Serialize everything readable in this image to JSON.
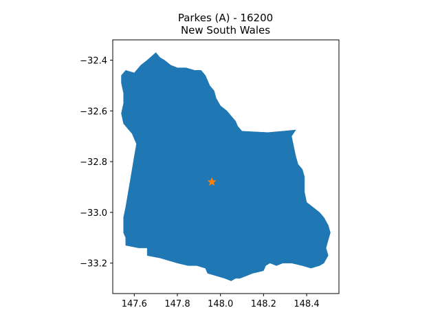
{
  "chart_data": {
    "type": "map",
    "title": "Parkes (A) - 16200",
    "subtitle": "New South Wales",
    "xlabel": "",
    "ylabel": "",
    "xlim": [
      147.5,
      148.55
    ],
    "ylim": [
      -33.32,
      -32.32
    ],
    "x_ticks": [
      147.6,
      147.8,
      148.0,
      148.2,
      148.4
    ],
    "x_tick_labels": [
      "147.6",
      "147.8",
      "148.0",
      "148.2",
      "148.4"
    ],
    "y_ticks": [
      -32.4,
      -32.6,
      -32.8,
      -33.0,
      -33.2
    ],
    "y_tick_labels": [
      "−32.4",
      "−32.6",
      "−32.8",
      "−33.0",
      "−33.2"
    ],
    "grid": false,
    "region": {
      "color": "#1f77b4",
      "boundary": [
        [
          147.7,
          -32.37
        ],
        [
          147.72,
          -32.39
        ],
        [
          147.74,
          -32.4
        ],
        [
          147.77,
          -32.42
        ],
        [
          147.8,
          -32.43
        ],
        [
          147.84,
          -32.43
        ],
        [
          147.88,
          -32.44
        ],
        [
          147.91,
          -32.44
        ],
        [
          147.93,
          -32.46
        ],
        [
          147.94,
          -32.48
        ],
        [
          147.95,
          -32.5
        ],
        [
          147.97,
          -32.52
        ],
        [
          147.98,
          -32.55
        ],
        [
          148.0,
          -32.58
        ],
        [
          148.03,
          -32.6
        ],
        [
          148.05,
          -32.62
        ],
        [
          148.07,
          -32.64
        ],
        [
          148.08,
          -32.66
        ],
        [
          148.1,
          -32.68
        ],
        [
          148.22,
          -32.685
        ],
        [
          148.29,
          -32.68
        ],
        [
          148.35,
          -32.675
        ],
        [
          148.33,
          -32.7
        ],
        [
          148.34,
          -32.74
        ],
        [
          148.35,
          -32.78
        ],
        [
          148.36,
          -32.81
        ],
        [
          148.38,
          -32.83
        ],
        [
          148.39,
          -32.86
        ],
        [
          148.39,
          -32.92
        ],
        [
          148.4,
          -32.96
        ],
        [
          148.43,
          -32.98
        ],
        [
          148.46,
          -33.0
        ],
        [
          148.48,
          -33.02
        ],
        [
          148.5,
          -33.05
        ],
        [
          148.51,
          -33.08
        ],
        [
          148.5,
          -33.11
        ],
        [
          148.49,
          -33.14
        ],
        [
          148.5,
          -33.17
        ],
        [
          148.48,
          -33.2
        ],
        [
          148.46,
          -33.21
        ],
        [
          148.42,
          -33.22
        ],
        [
          148.38,
          -33.21
        ],
        [
          148.33,
          -33.2
        ],
        [
          148.29,
          -33.2
        ],
        [
          148.26,
          -33.21
        ],
        [
          148.23,
          -33.2
        ],
        [
          148.21,
          -33.21
        ],
        [
          148.2,
          -33.23
        ],
        [
          148.15,
          -33.24
        ],
        [
          148.12,
          -33.25
        ],
        [
          148.09,
          -33.26
        ],
        [
          148.07,
          -33.26
        ],
        [
          148.05,
          -33.27
        ],
        [
          148.02,
          -33.26
        ],
        [
          147.98,
          -33.25
        ],
        [
          147.94,
          -33.24
        ],
        [
          147.93,
          -33.22
        ],
        [
          147.89,
          -33.21
        ],
        [
          147.85,
          -33.21
        ],
        [
          147.8,
          -33.2
        ],
        [
          147.76,
          -33.19
        ],
        [
          147.72,
          -33.18
        ],
        [
          147.66,
          -33.17
        ],
        [
          147.66,
          -33.14
        ],
        [
          147.62,
          -33.14
        ],
        [
          147.56,
          -33.13
        ],
        [
          147.56,
          -33.1
        ],
        [
          147.55,
          -33.08
        ],
        [
          147.55,
          -33.02
        ],
        [
          147.56,
          -32.98
        ],
        [
          147.57,
          -32.93
        ],
        [
          147.58,
          -32.88
        ],
        [
          147.59,
          -32.83
        ],
        [
          147.6,
          -32.78
        ],
        [
          147.61,
          -32.73
        ],
        [
          147.6,
          -32.71
        ],
        [
          147.59,
          -32.69
        ],
        [
          147.57,
          -32.67
        ],
        [
          147.55,
          -32.65
        ],
        [
          147.54,
          -32.61
        ],
        [
          147.55,
          -32.57
        ],
        [
          147.55,
          -32.53
        ],
        [
          147.54,
          -32.49
        ],
        [
          147.54,
          -32.46
        ],
        [
          147.56,
          -32.44
        ],
        [
          147.6,
          -32.45
        ],
        [
          147.63,
          -32.42
        ],
        [
          147.66,
          -32.4
        ],
        [
          147.7,
          -32.37
        ]
      ]
    },
    "marker": {
      "x": 147.96,
      "y": -32.88,
      "symbol": "star",
      "color": "#ff7f0e"
    }
  }
}
